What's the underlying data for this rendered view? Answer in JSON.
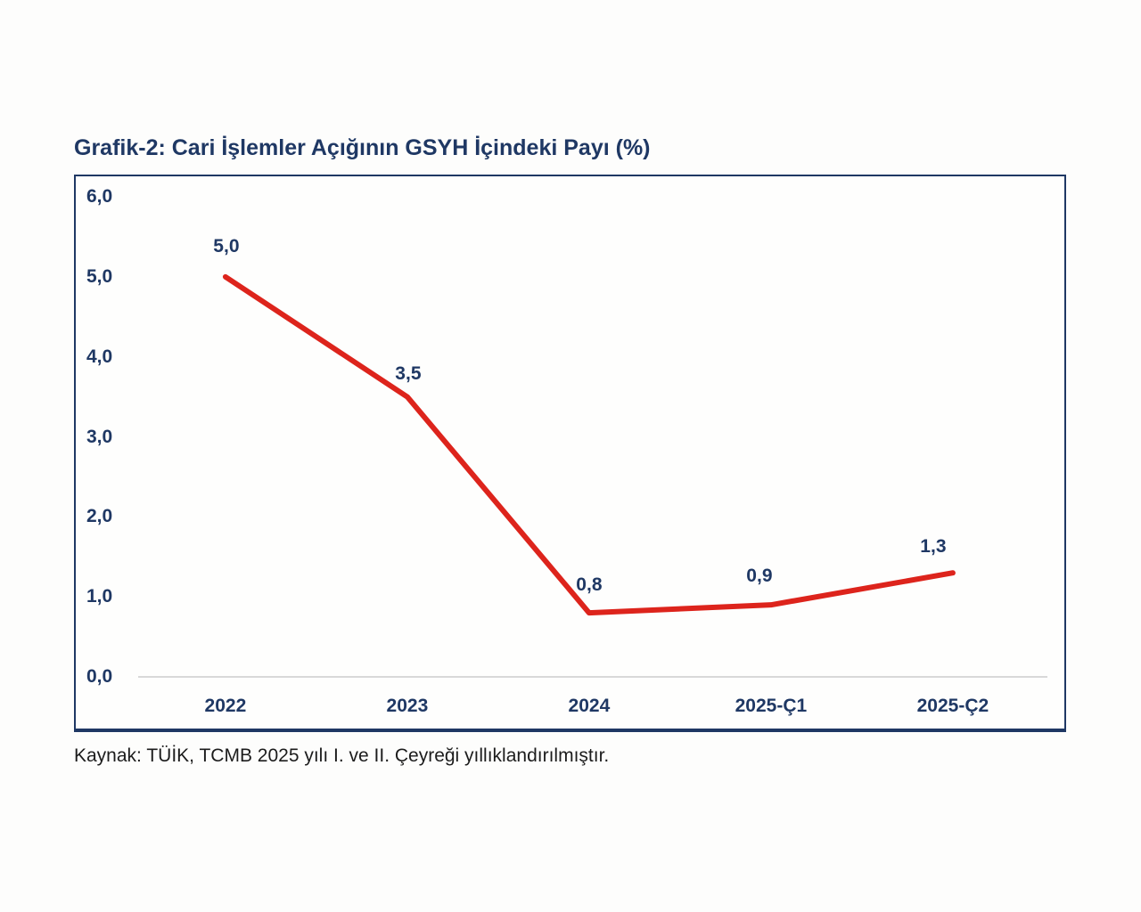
{
  "caption": "Kaynak: TÜİK, TCMB 2025 yılı I. ve II. Çeyreği yıllıklandırılmıştır.",
  "colors": {
    "navy_text": "#1f3864",
    "line_red": "#dd241c",
    "zero_gridline": "#d9d9d9",
    "chart_border": "#1f3864",
    "caption_text": "#1c1c1c",
    "background": "#fdfdfc"
  },
  "chart_data": {
    "type": "line",
    "title": "Grafik-2: Cari İşlemler Açığının GSYH İçindeki Payı (%)",
    "categories": [
      "2022",
      "2023",
      "2024",
      "2025-Ç1",
      "2025-Ç2"
    ],
    "values": [
      5.0,
      3.5,
      0.8,
      0.9,
      1.3
    ],
    "value_labels": [
      "5,0",
      "3,5",
      "0,8",
      "0,9",
      "1,3"
    ],
    "y_ticks": [
      "6,0",
      "5,0",
      "4,0",
      "3,0",
      "2,0",
      "1,0",
      "0,0"
    ],
    "y_tick_values": [
      6,
      5,
      4,
      3,
      2,
      1,
      0
    ],
    "ylim": [
      0,
      6
    ],
    "xlabel": "",
    "ylabel": "",
    "legend": "none",
    "grid": "zero-baseline-only",
    "line_color": "#dd241c",
    "line_width": 6,
    "markers": "none",
    "decimal_separator": ","
  }
}
